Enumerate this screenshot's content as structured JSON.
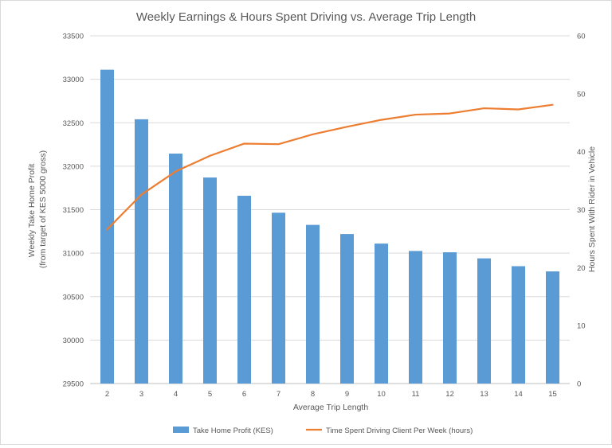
{
  "chart_data": {
    "type": "bar+line",
    "title": "Weekly Earnings & Hours Spent Driving vs. Average Trip Length",
    "xlabel": "Average Trip Length",
    "ylabel_left": [
      "Weekly Take Home Profit",
      "(from target of KES 5000 gross)"
    ],
    "ylabel_right": "Hours Spent With Rider in Vehicle",
    "categories": [
      "2",
      "3",
      "4",
      "5",
      "6",
      "7",
      "8",
      "9",
      "10",
      "11",
      "12",
      "13",
      "14",
      "15"
    ],
    "y_left": {
      "min": 29500,
      "max": 33500,
      "step": 500,
      "ticks": [
        "29500",
        "30000",
        "30500",
        "31000",
        "31500",
        "32000",
        "32500",
        "33000",
        "33500"
      ]
    },
    "y_right": {
      "min": 0,
      "max": 60,
      "step": 10,
      "ticks": [
        "0",
        "10",
        "20",
        "30",
        "40",
        "50",
        "60"
      ]
    },
    "series": [
      {
        "name": "Take Home Profit (KES)",
        "type": "bar",
        "axis": "left",
        "color": "#5b9bd5",
        "values": [
          33110,
          32540,
          32145,
          31870,
          31660,
          31465,
          31325,
          31220,
          31110,
          31025,
          31010,
          30940,
          30850,
          30790
        ]
      },
      {
        "name": "Time Spent Driving Client Per Week (hours)",
        "type": "line",
        "axis": "right",
        "color": "#ed7d31",
        "values": [
          26.6,
          32.6,
          36.6,
          39.3,
          41.4,
          41.3,
          43.0,
          44.3,
          45.5,
          46.4,
          46.6,
          47.5,
          47.3,
          48.1
        ]
      }
    ],
    "legend_position": "bottom",
    "grid": true
  }
}
